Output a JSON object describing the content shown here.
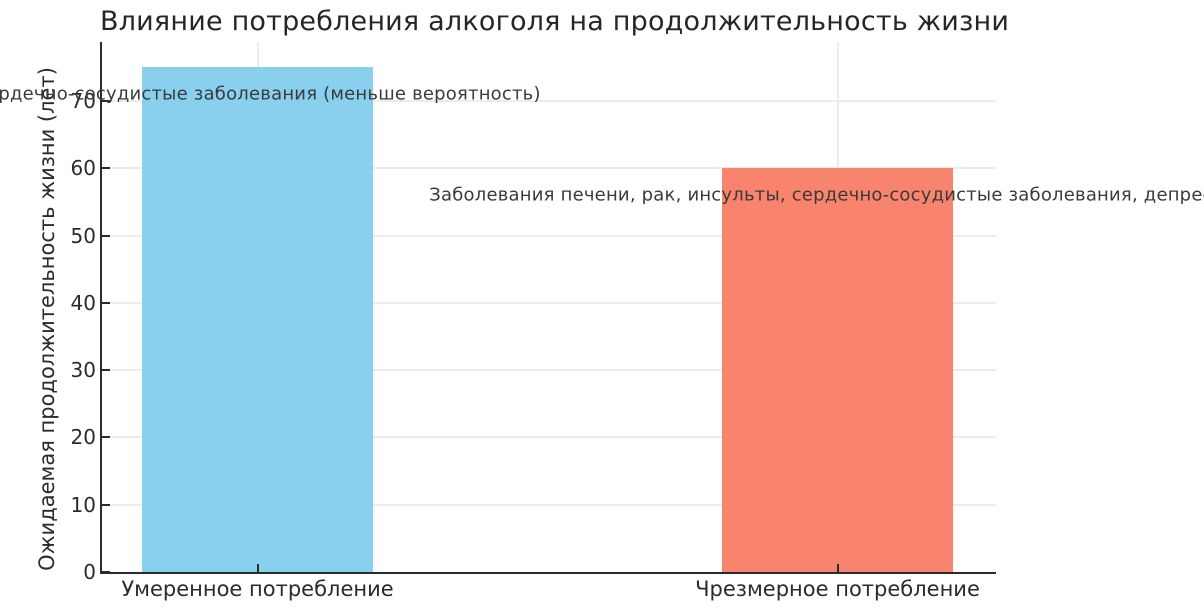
{
  "chart_data": {
    "type": "bar",
    "title": "Влияние потребления алкоголя на продолжительность жизни",
    "xlabel": "",
    "ylabel": "Ожидаемая продолжительность жизни (лет)",
    "categories": [
      "Умеренное потребление",
      "Чрезмерное потребление"
    ],
    "values": [
      75,
      60
    ],
    "bar_colors": [
      "#89CFEE",
      "#F9846E"
    ],
    "yticks": [
      0,
      10,
      20,
      30,
      40,
      50,
      60,
      70
    ],
    "ylim": [
      0,
      79
    ],
    "grid": "on-light",
    "legend_position": "none",
    "annotations": [
      {
        "text": "Сердечно-сосудистые заболевания (меньше вероятность)",
        "category_index": 0,
        "y_value": 71
      },
      {
        "text": "Заболевания печени, рак, инсульты, сердечно-сосудистые заболевания, депрессия",
        "category_index": 1,
        "y_value": 56
      }
    ]
  },
  "colors": {
    "background": "#ffffff",
    "bar_moderate": "#89CFEE",
    "bar_excessive": "#F9846E",
    "grid": "#ececec",
    "axis": "#2b2b2b",
    "text": "#2b2b2b",
    "annotation_text": "#3a3a3a"
  }
}
